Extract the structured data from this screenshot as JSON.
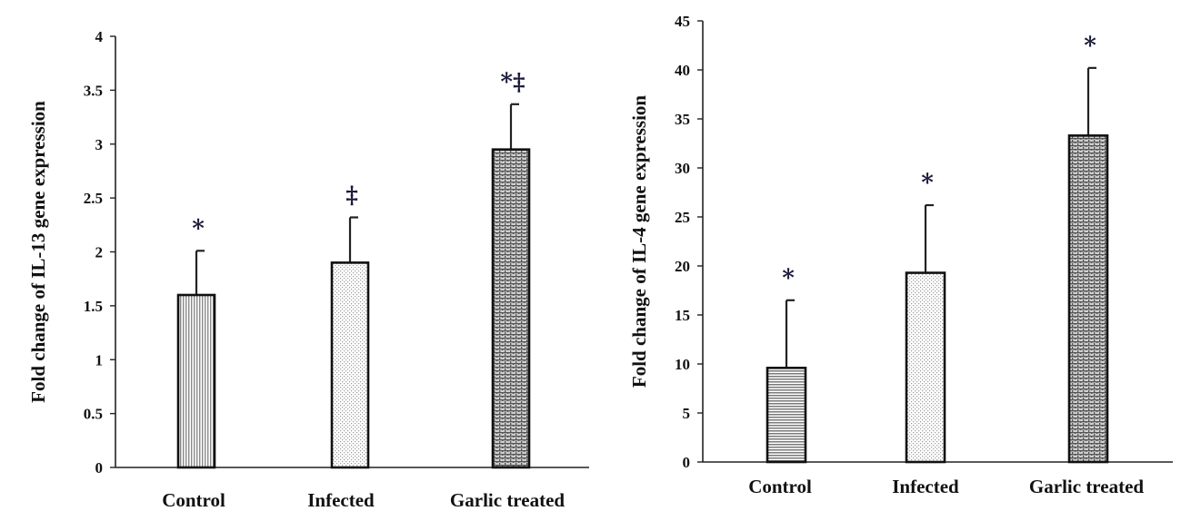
{
  "chart_data": [
    {
      "type": "bar",
      "categories": [
        "Control",
        "Infected",
        "Garlic treated"
      ],
      "values": [
        1.6,
        1.9,
        2.95
      ],
      "errors": [
        0.41,
        0.42,
        0.42
      ],
      "annotations": [
        "*",
        "‡",
        "*‡"
      ],
      "ylabel": "Fold change of IL-13 gene expression",
      "xlabel": "",
      "ylim": [
        0,
        4
      ],
      "yticks": [
        "0",
        "0.5",
        "1",
        "1.5",
        "2",
        "2.5",
        "3",
        "3.5",
        "4"
      ],
      "bar_fills": [
        "vstripe",
        "dots",
        "brick"
      ],
      "grid": false
    },
    {
      "type": "bar",
      "categories": [
        "Control",
        "Infected",
        "Garlic treated"
      ],
      "values": [
        9.6,
        19.3,
        33.3
      ],
      "errors": [
        6.9,
        6.9,
        6.9
      ],
      "annotations": [
        "*",
        "*",
        "*"
      ],
      "ylabel": "Fold change of IL-4 gene expression",
      "xlabel": "",
      "ylim": [
        0,
        45
      ],
      "yticks": [
        "0",
        "5",
        "10",
        "15",
        "20",
        "25",
        "30",
        "35",
        "40",
        "45"
      ],
      "bar_fills": [
        "hstripe",
        "dots",
        "brick"
      ],
      "grid": false
    }
  ]
}
